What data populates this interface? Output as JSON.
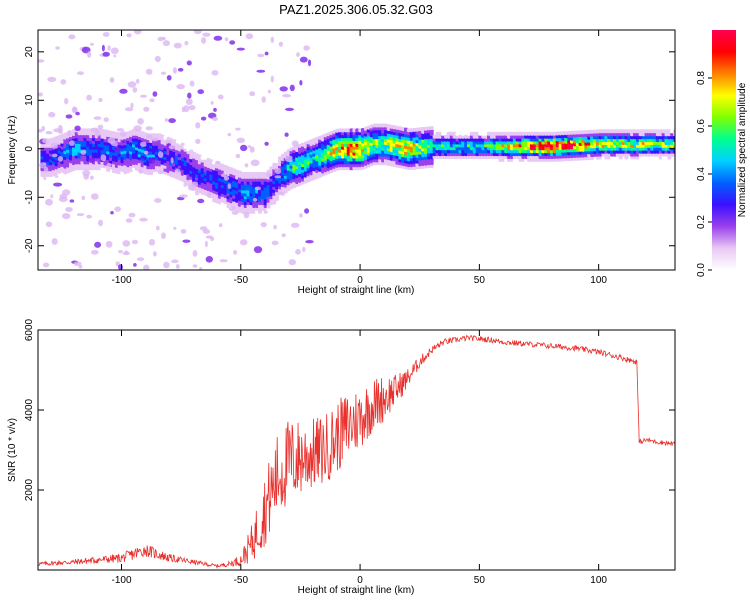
{
  "figure": {
    "title": "PAZ1.2025.306.05.32.G03"
  },
  "chart_data": [
    {
      "type": "heatmap",
      "name": "spectrogram",
      "xlabel": "Height of straight line (km)",
      "ylabel": "Frequency (Hz)",
      "xlim": [
        -135,
        132
      ],
      "ylim": [
        -25,
        24.5
      ],
      "xticks": [
        -100,
        -50,
        0,
        50,
        100
      ],
      "yticks": [
        -20,
        -10,
        0,
        10,
        20
      ],
      "colorbar": {
        "label": "Normalized spectral amplitude",
        "range": [
          0,
          1
        ],
        "ticks": [
          0.0,
          0.2,
          0.4,
          0.6,
          0.8
        ],
        "tick_labels": [
          "0.0",
          "0.2",
          "0.4",
          "0.6",
          "0.8"
        ],
        "colors": [
          "#ffffff",
          "#e8c8f4",
          "#9a40ec",
          "#3a10ff",
          "#0060ff",
          "#00d0ff",
          "#00ff90",
          "#80ff00",
          "#ffff00",
          "#ff8000",
          "#ff0000",
          "#ff0050"
        ]
      },
      "ridge": {
        "x": [
          -130,
          -125,
          -120,
          -110,
          -100,
          -95,
          -90,
          -85,
          -80,
          -75,
          -70,
          -65,
          -60,
          -55,
          -50,
          -45,
          -40,
          -35,
          -30,
          -25,
          -20,
          -15,
          -10,
          -5,
          0,
          5,
          10,
          20,
          30,
          50,
          80,
          100,
          132
        ],
        "freq": [
          -2,
          -1,
          0,
          0,
          -1,
          0,
          -1,
          -1,
          -2,
          -3,
          -5,
          -6,
          -7,
          -8,
          -9,
          -9,
          -9,
          -6,
          -4,
          -3,
          -2,
          -1,
          0,
          0,
          0,
          1,
          1,
          0,
          0.5,
          0.5,
          0.5,
          1,
          1
        ],
        "amplitude": [
          0.3,
          0.35,
          0.4,
          0.35,
          0.35,
          0.4,
          0.4,
          0.3,
          0.3,
          0.3,
          0.3,
          0.3,
          0.35,
          0.35,
          0.4,
          0.4,
          0.35,
          0.3,
          0.5,
          0.55,
          0.45,
          0.6,
          0.7,
          0.85,
          0.8,
          0.6,
          0.6,
          0.75,
          0.5,
          0.5,
          1.0,
          0.7,
          0.6
        ]
      }
    },
    {
      "type": "line",
      "name": "snr",
      "xlabel": "Height of straight line (km)",
      "ylabel": "SNR (10 * v/v)",
      "xlim": [
        -135,
        132
      ],
      "ylim": [
        0,
        6000
      ],
      "xticks": [
        -100,
        -50,
        0,
        50,
        100
      ],
      "yticks": [
        2000,
        4000,
        6000
      ],
      "series": [
        {
          "name": "SNR",
          "color": "#e8302c",
          "x": [
            -135,
            -120,
            -110,
            -100,
            -95,
            -90,
            -85,
            -80,
            -70,
            -60,
            -55,
            -50,
            -45,
            -42,
            -38,
            -35,
            -30,
            -25,
            -20,
            -15,
            -10,
            -5,
            0,
            5,
            10,
            15,
            20,
            25,
            30,
            35,
            40,
            45,
            50,
            55,
            60,
            70,
            80,
            90,
            100,
            110,
            116,
            117,
            120,
            125,
            132
          ],
          "y": [
            150,
            200,
            250,
            300,
            400,
            500,
            400,
            300,
            200,
            100,
            150,
            250,
            700,
            1200,
            1800,
            2300,
            2700,
            2800,
            2900,
            3000,
            3300,
            3600,
            3800,
            4100,
            4300,
            4500,
            4800,
            5200,
            5500,
            5700,
            5750,
            5800,
            5780,
            5750,
            5700,
            5650,
            5600,
            5550,
            5450,
            5300,
            5200,
            3200,
            3250,
            3200,
            3150
          ],
          "noise": [
            50,
            70,
            90,
            120,
            150,
            160,
            140,
            100,
            60,
            40,
            60,
            150,
            500,
            800,
            1000,
            1100,
            1100,
            1000,
            900,
            900,
            900,
            900,
            800,
            700,
            600,
            400,
            250,
            150,
            100,
            80,
            70,
            70,
            70,
            70,
            70,
            70,
            70,
            70,
            70,
            70,
            70,
            60,
            60,
            60,
            60
          ]
        }
      ]
    }
  ]
}
